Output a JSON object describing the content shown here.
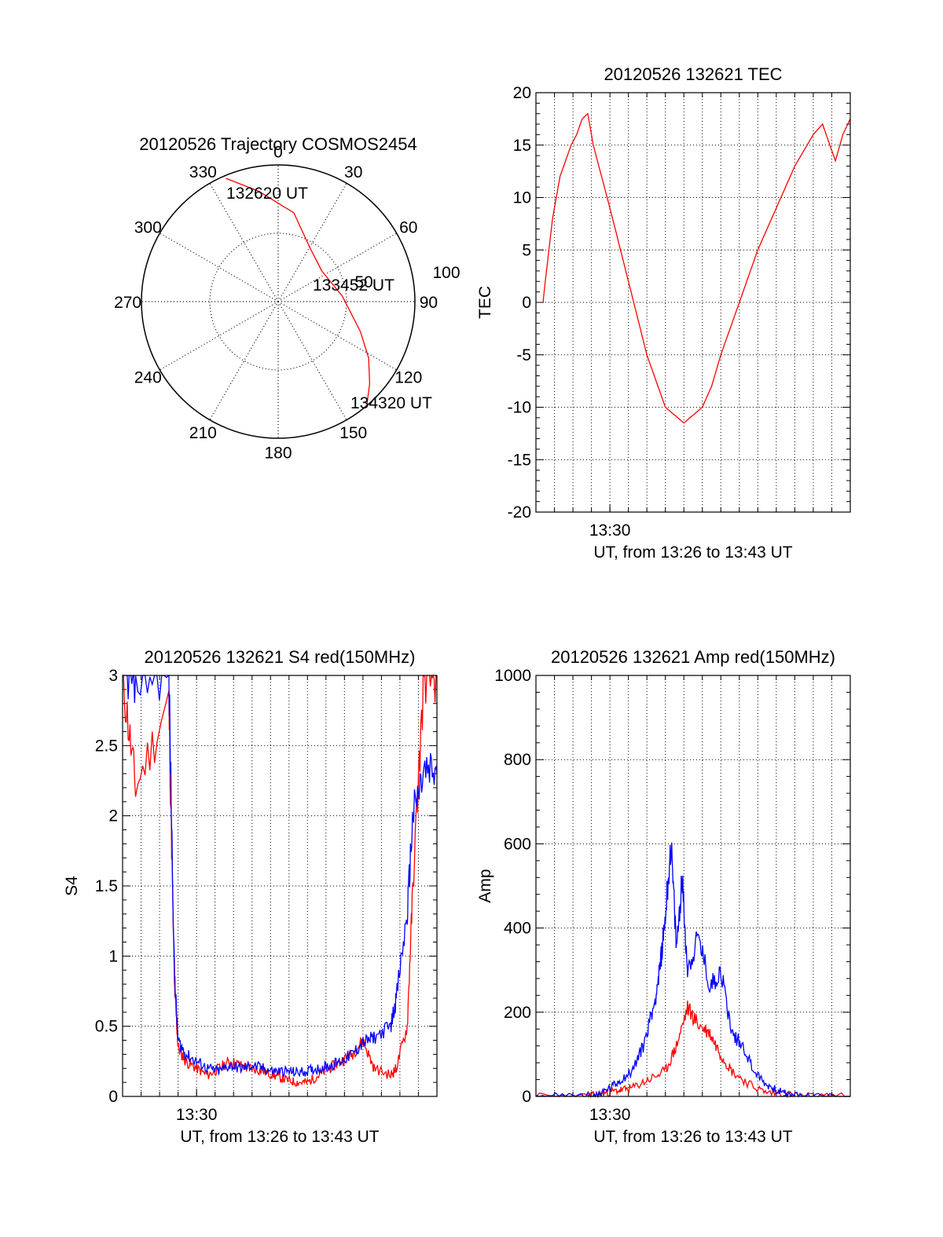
{
  "chart_data": [
    {
      "type": "polar",
      "title": "20120526 Trajectory COSMOS2454",
      "azimuth_labels": [
        "0",
        "30",
        "60",
        "90",
        "120",
        "150",
        "180",
        "210",
        "240",
        "270",
        "300",
        "330"
      ],
      "radial_labels": [
        "50",
        "100"
      ],
      "rlim": [
        0,
        100
      ],
      "grid": true,
      "series": [
        {
          "color": "#ff0000",
          "points_az_r": [
            [
              337,
              98
            ],
            [
              350,
              82
            ],
            [
              10,
              66
            ],
            [
              30,
              46
            ],
            [
              55,
              39
            ],
            [
              85,
              47
            ],
            [
              110,
              64
            ],
            [
              122,
              78
            ],
            [
              132,
              90
            ],
            [
              139,
              99
            ]
          ]
        }
      ],
      "annotations": [
        "132620 UT",
        "133452 UT",
        "134320 UT"
      ]
    },
    {
      "type": "line",
      "title": "20120526 132621 TEC",
      "xlabel": "UT, from 13:26 to 13:43 UT",
      "ylabel": "TEC",
      "xlim": [
        13.4333,
        13.7167
      ],
      "ylim": [
        -20,
        20
      ],
      "yticks": [
        -20,
        -15,
        -10,
        -5,
        0,
        5,
        10,
        15,
        20
      ],
      "xtick_labels": [
        {
          "x": 13.5,
          "label": "13:30"
        }
      ],
      "grid": true,
      "series": [
        {
          "color": "#ff0000",
          "x": [
            13.4397,
            13.4417,
            13.445,
            13.4483,
            13.455,
            13.4617,
            13.465,
            13.47,
            13.475,
            13.48,
            13.4817,
            13.485,
            13.5,
            13.5167,
            13.5333,
            13.55,
            13.5667,
            13.5833,
            13.5917,
            13.6,
            13.6167,
            13.6333,
            13.65,
            13.6667,
            13.6833,
            13.6917,
            13.6983,
            13.7033,
            13.71,
            13.7167
          ],
          "y": [
            0,
            2,
            5,
            8,
            12,
            14,
            15,
            16,
            17.5,
            18,
            17,
            15,
            9,
            2,
            -5,
            -10,
            -11.5,
            -10,
            -8,
            -5,
            0,
            5,
            9,
            13,
            16,
            17,
            15,
            13.5,
            16,
            17.5
          ]
        }
      ]
    },
    {
      "type": "line",
      "title": "20120526 132621 S4 red(150MHz)",
      "xlabel": "UT, from 13:26 to 13:43 UT",
      "ylabel": "S4",
      "xlim": [
        13.4333,
        13.7167
      ],
      "ylim": [
        0,
        3
      ],
      "yticks": [
        0,
        0.5,
        1,
        1.5,
        2,
        2.5,
        3
      ],
      "xtick_labels": [
        {
          "x": 13.5,
          "label": "13:30"
        }
      ],
      "grid": true,
      "series": [
        {
          "color": "#ff0000",
          "x": [
            13.4333,
            13.445,
            13.475,
            13.48,
            13.4833,
            13.49,
            13.5,
            13.51,
            13.52,
            13.53,
            13.54,
            13.55,
            13.56,
            13.57,
            13.58,
            13.59,
            13.6,
            13.61,
            13.62,
            13.63,
            13.64,
            13.65,
            13.66,
            13.675,
            13.68,
            13.69,
            13.695,
            13.705,
            13.7167
          ],
          "y": [
            3,
            2.2,
            2.8,
            0.8,
            0.35,
            0.25,
            0.2,
            0.15,
            0.2,
            0.25,
            0.22,
            0.2,
            0.18,
            0.15,
            0.12,
            0.1,
            0.1,
            0.15,
            0.2,
            0.25,
            0.3,
            0.4,
            0.2,
            0.15,
            0.2,
            0.5,
            1.5,
            3,
            3
          ]
        },
        {
          "color": "#0000ff",
          "x": [
            13.4333,
            13.445,
            13.475,
            13.48,
            13.4833,
            13.49,
            13.5,
            13.51,
            13.52,
            13.53,
            13.54,
            13.55,
            13.56,
            13.57,
            13.58,
            13.59,
            13.6,
            13.61,
            13.62,
            13.63,
            13.64,
            13.65,
            13.66,
            13.675,
            13.68,
            13.69,
            13.695,
            13.705,
            13.7167
          ],
          "y": [
            3,
            3,
            3,
            0.9,
            0.4,
            0.3,
            0.25,
            0.2,
            0.18,
            0.22,
            0.2,
            0.22,
            0.2,
            0.18,
            0.18,
            0.17,
            0.18,
            0.2,
            0.22,
            0.25,
            0.3,
            0.38,
            0.42,
            0.5,
            0.7,
            1.3,
            2.0,
            2.3,
            2.3
          ]
        }
      ]
    },
    {
      "type": "line",
      "title": "20120526 132621 Amp red(150MHz)",
      "xlabel": "UT, from 13:26 to 13:43 UT",
      "ylabel": "Amp",
      "xlim": [
        13.4333,
        13.7167
      ],
      "ylim": [
        0,
        1000
      ],
      "yticks": [
        0,
        200,
        400,
        600,
        800,
        1000
      ],
      "xtick_labels": [
        {
          "x": 13.5,
          "label": "13:30"
        }
      ],
      "grid": true,
      "series": [
        {
          "color": "#ff0000",
          "x": [
            13.4333,
            13.48,
            13.49,
            13.5,
            13.51,
            13.52,
            13.535,
            13.55,
            13.56,
            13.57,
            13.58,
            13.59,
            13.6,
            13.61,
            13.625,
            13.64,
            13.66,
            13.68,
            13.7167
          ],
          "y": [
            0,
            0,
            5,
            10,
            15,
            20,
            40,
            60,
            120,
            210,
            170,
            150,
            100,
            60,
            30,
            10,
            5,
            0,
            0
          ]
        },
        {
          "color": "#0000ff",
          "x": [
            13.4333,
            13.475,
            13.49,
            13.5,
            13.51,
            13.52,
            13.53,
            13.54,
            13.545,
            13.55,
            13.555,
            13.56,
            13.565,
            13.57,
            13.58,
            13.59,
            13.6,
            13.61,
            13.62,
            13.63,
            13.64,
            13.65,
            13.66,
            13.68,
            13.7167
          ],
          "y": [
            0,
            0,
            5,
            20,
            40,
            60,
            120,
            220,
            300,
            430,
            600,
            350,
            520,
            300,
            380,
            260,
            300,
            150,
            120,
            60,
            30,
            15,
            5,
            0,
            0
          ]
        }
      ]
    }
  ],
  "panels": {
    "polar": {
      "title": "20120526 Trajectory COSMOS2454"
    },
    "tec": {
      "title": "20120526 132621 TEC"
    },
    "s4": {
      "title": "20120526 132621 S4 red(150MHz)"
    },
    "amp": {
      "title": "20120526 132621 Amp red(150MHz)"
    }
  },
  "colors": {
    "red": "#ff0000",
    "blue": "#0000ff",
    "axis": "#000000",
    "grid": "#000000"
  }
}
